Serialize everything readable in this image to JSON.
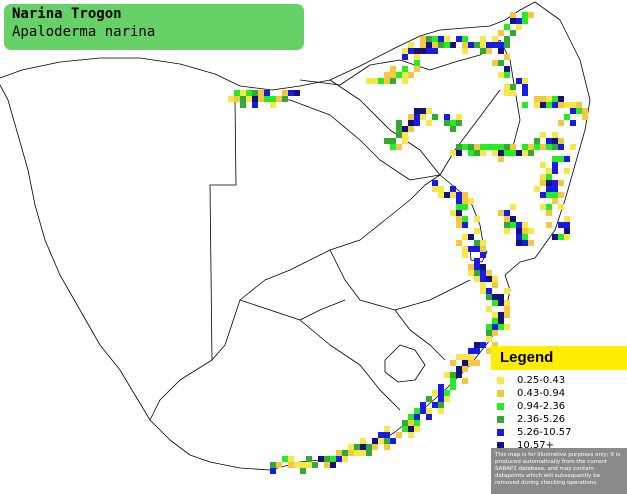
{
  "title": {
    "common_name": "Narina Trogon",
    "scientific_name": "Apaloderma narina"
  },
  "legend": {
    "heading": "Legend",
    "items": [
      {
        "label": "0.25-0.43",
        "color": "#f7e84a"
      },
      {
        "label": "0.43-0.94",
        "color": "#f5c842"
      },
      {
        "label": "0.94-2.36",
        "color": "#22ee22"
      },
      {
        "label": "2.36-5.26",
        "color": "#33aa33"
      },
      {
        "label": "5.26-10.57",
        "color": "#1a1ae6"
      },
      {
        "label": "10.57+",
        "color": "#12127a"
      }
    ],
    "disclaimer": "This map is for illustrative purposes only; it is produced automatically from the current SABAP2 database, and may contain datapoints which will subsequently be removed during checking operations."
  },
  "colors": {
    "title_box": "#66d166",
    "legend_header": "#ffee00",
    "border_lines": "#000000"
  }
}
